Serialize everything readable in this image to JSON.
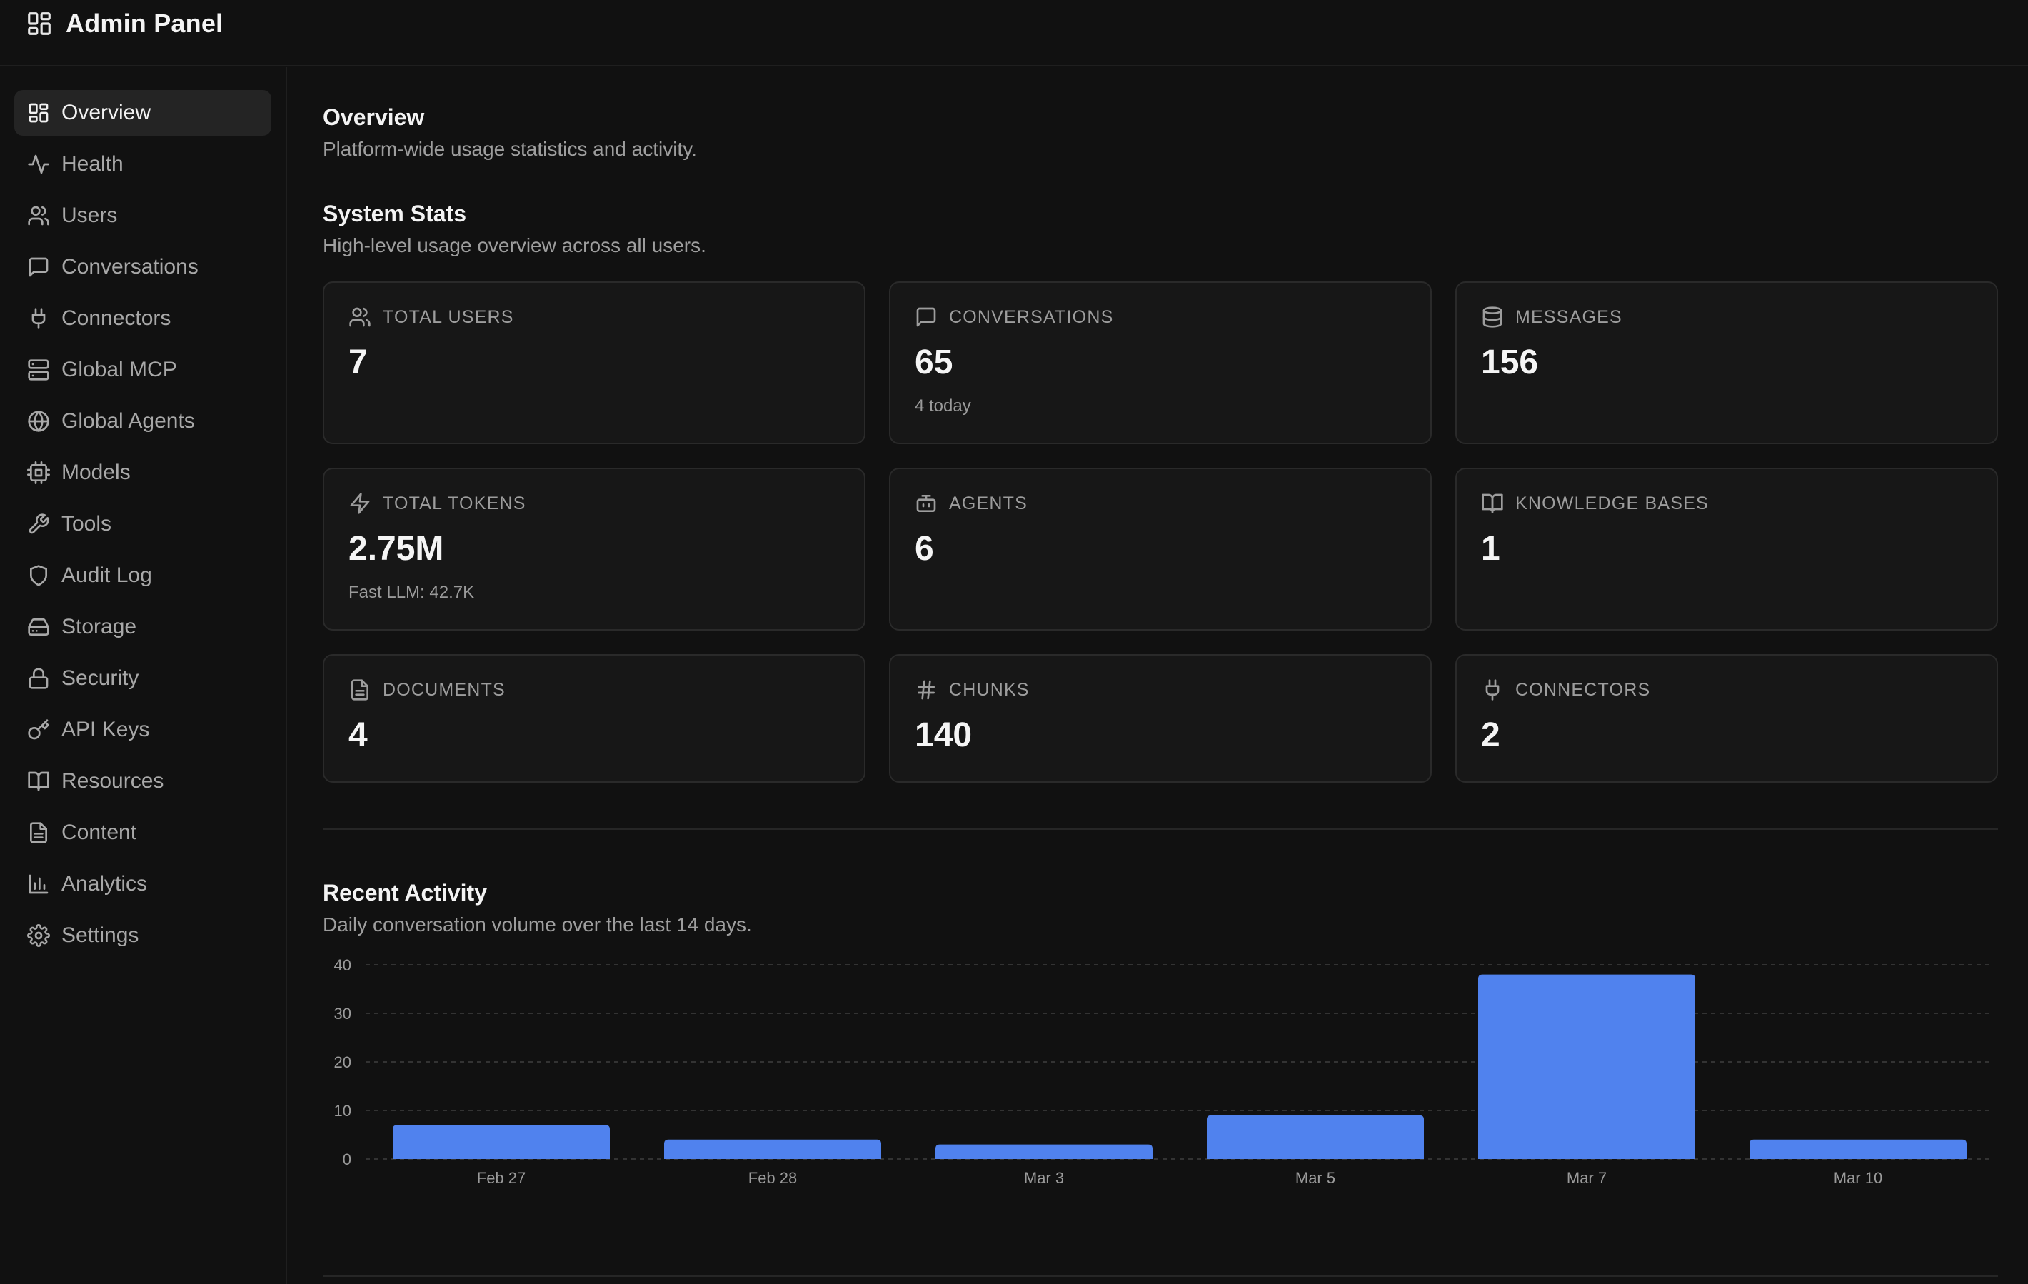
{
  "app": {
    "title": "Admin Panel"
  },
  "sidebar": {
    "items": [
      {
        "label": "Overview",
        "icon": "grid-icon",
        "active": true
      },
      {
        "label": "Health",
        "icon": "activity-icon"
      },
      {
        "label": "Users",
        "icon": "users-icon"
      },
      {
        "label": "Conversations",
        "icon": "message-square-icon"
      },
      {
        "label": "Connectors",
        "icon": "plug-icon"
      },
      {
        "label": "Global MCP",
        "icon": "server-icon"
      },
      {
        "label": "Global Agents",
        "icon": "globe-icon"
      },
      {
        "label": "Models",
        "icon": "cpu-icon"
      },
      {
        "label": "Tools",
        "icon": "wrench-icon"
      },
      {
        "label": "Audit Log",
        "icon": "shield-icon"
      },
      {
        "label": "Storage",
        "icon": "hard-drive-icon"
      },
      {
        "label": "Security",
        "icon": "lock-icon"
      },
      {
        "label": "API Keys",
        "icon": "key-icon"
      },
      {
        "label": "Resources",
        "icon": "book-icon"
      },
      {
        "label": "Content",
        "icon": "file-text-icon"
      },
      {
        "label": "Analytics",
        "icon": "bar-chart-icon"
      },
      {
        "label": "Settings",
        "icon": "settings-icon"
      }
    ]
  },
  "page": {
    "title": "Overview",
    "subtitle": "Platform-wide usage statistics and activity."
  },
  "stats": {
    "title": "System Stats",
    "subtitle": "High-level usage overview across all users.",
    "cards": [
      {
        "label": "TOTAL USERS",
        "value": "7",
        "sub": "",
        "icon": "users-icon"
      },
      {
        "label": "CONVERSATIONS",
        "value": "65",
        "sub": "4 today",
        "icon": "message-square-icon"
      },
      {
        "label": "MESSAGES",
        "value": "156",
        "sub": "",
        "icon": "database-icon"
      },
      {
        "label": "TOTAL TOKENS",
        "value": "2.75M",
        "sub": "Fast LLM: 42.7K",
        "icon": "zap-icon"
      },
      {
        "label": "AGENTS",
        "value": "6",
        "sub": "",
        "icon": "bot-icon"
      },
      {
        "label": "KNOWLEDGE BASES",
        "value": "1",
        "sub": "",
        "icon": "book-icon"
      },
      {
        "label": "DOCUMENTS",
        "value": "4",
        "sub": "",
        "icon": "file-text-icon"
      },
      {
        "label": "CHUNKS",
        "value": "140",
        "sub": "",
        "icon": "hash-icon"
      },
      {
        "label": "CONNECTORS",
        "value": "2",
        "sub": "",
        "icon": "plug-icon"
      }
    ]
  },
  "activity": {
    "title": "Recent Activity",
    "subtitle": "Daily conversation volume over the last 14 days."
  },
  "chart_data": {
    "type": "bar",
    "categories": [
      "Feb 27",
      "Feb 28",
      "Mar 3",
      "Mar 5",
      "Mar 7",
      "Mar 10"
    ],
    "values": [
      7,
      4,
      3,
      9,
      38,
      4
    ],
    "yticks": [
      0,
      10,
      20,
      30,
      40
    ],
    "ylim": [
      0,
      40
    ],
    "grid": true,
    "bar_color": "#5082EE",
    "title": "",
    "xlabel": "",
    "ylabel": ""
  }
}
